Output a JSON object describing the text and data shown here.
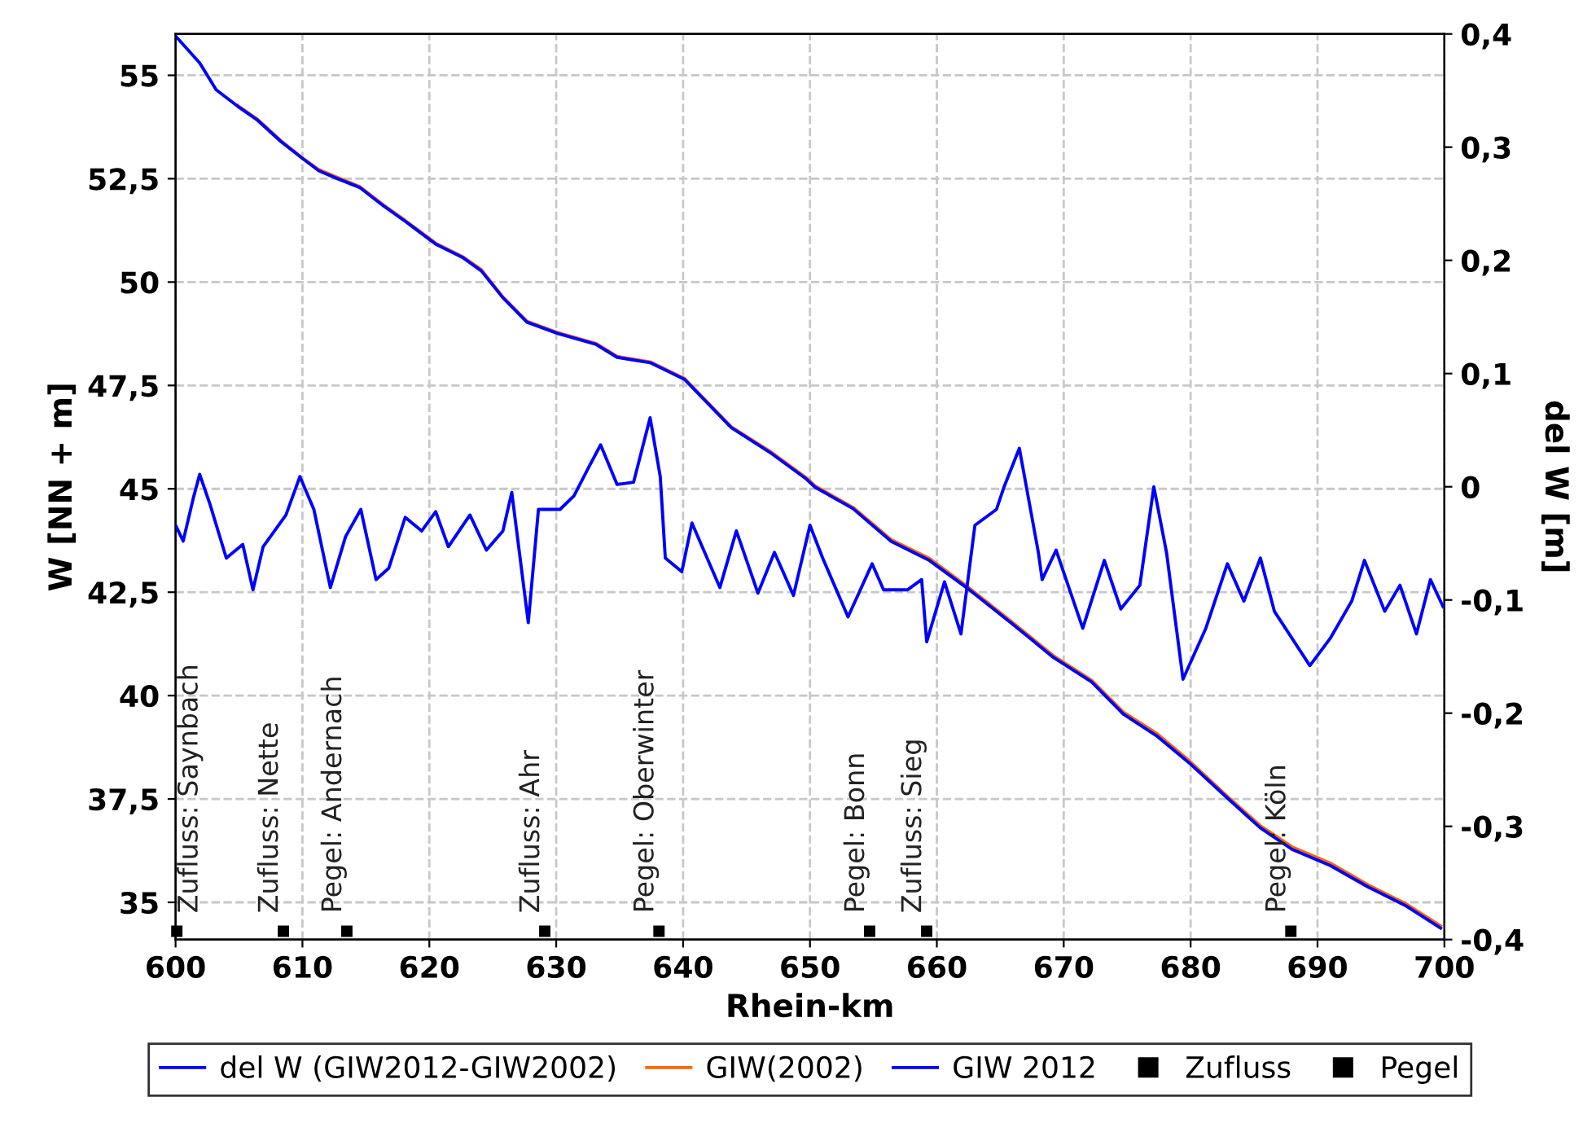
{
  "chart_data": {
    "type": "line",
    "xlabel": "Rhein-km",
    "ylabel": "W [NN + m]",
    "y2label": "del W [m]",
    "xlim": [
      600,
      700
    ],
    "xticks": [
      600,
      610,
      620,
      630,
      640,
      650,
      660,
      670,
      680,
      690,
      700
    ],
    "ylim": [
      34.1,
      56
    ],
    "yticks": [
      35,
      {
        "value": 37.5,
        "label": "37,5"
      },
      40,
      {
        "value": 42.5,
        "label": "42,5"
      },
      45,
      {
        "value": 47.5,
        "label": "47,5"
      },
      50,
      {
        "value": 52.5,
        "label": "52,5"
      },
      55
    ],
    "y2lim": [
      -0.4,
      0.4
    ],
    "y2ticks": [
      {
        "value": -0.4,
        "label": "-0,4"
      },
      {
        "value": -0.3,
        "label": "-0,3"
      },
      {
        "value": -0.2,
        "label": "-0,2"
      },
      {
        "value": -0.1,
        "label": "-0,1"
      },
      0,
      {
        "value": 0.1,
        "label": "0,1"
      },
      {
        "value": 0.2,
        "label": "0,2"
      },
      {
        "value": 0.3,
        "label": "0,3"
      },
      {
        "value": 0.4,
        "label": "0,4"
      }
    ],
    "grid": true,
    "legend": "bottom",
    "line_style": "solid",
    "series": [
      {
        "name": "del W (GIW2012-GIW2002)",
        "axis": "y2",
        "color": "#0000ff",
        "x": [
          600,
          600.6,
          601.4,
          601.9,
          602.7,
          604.0,
          605.3,
          606.1,
          606.9,
          608.7,
          609.8,
          610.9,
          612.2,
          613.4,
          614.6,
          615.8,
          616.8,
          618.1,
          619.4,
          620.5,
          621.5,
          623.2,
          624.5,
          625.8,
          626.5,
          627.8,
          628.6,
          630.3,
          631.4,
          632.6,
          633.5,
          634.8,
          636.1,
          637.4,
          638.2,
          638.6,
          639.9,
          640.7,
          642.9,
          644.2,
          645.9,
          647.2,
          648.7,
          650.0,
          651.0,
          653.0,
          654.9,
          655.8,
          657.7,
          658.8,
          659.2,
          660.6,
          661.9,
          663.0,
          664.7,
          665.3,
          666.5,
          668.0,
          668.3,
          669.4,
          671.5,
          673.2,
          674.5,
          676.0,
          677.1,
          678.1,
          679.4,
          681.2,
          682.9,
          684.2,
          685.5,
          686.6,
          689.4,
          691.0,
          692.7,
          693.7,
          695.3,
          696.5,
          697.8,
          698.9,
          699.9
        ],
        "values": [
          -0.034,
          -0.048,
          -0.01,
          0.011,
          -0.015,
          -0.063,
          -0.051,
          -0.091,
          -0.053,
          -0.025,
          0.009,
          -0.02,
          -0.089,
          -0.044,
          -0.02,
          -0.082,
          -0.072,
          -0.027,
          -0.039,
          -0.022,
          -0.053,
          -0.025,
          -0.056,
          -0.039,
          -0.005,
          -0.12,
          -0.02,
          -0.02,
          -0.008,
          0.018,
          0.037,
          0.002,
          0.004,
          0.061,
          0.009,
          -0.063,
          -0.075,
          -0.032,
          -0.089,
          -0.039,
          -0.094,
          -0.058,
          -0.096,
          -0.034,
          -0.063,
          -0.115,
          -0.068,
          -0.091,
          -0.091,
          -0.082,
          -0.137,
          -0.084,
          -0.13,
          -0.034,
          -0.02,
          0.0,
          0.034,
          -0.058,
          -0.082,
          -0.056,
          -0.125,
          -0.065,
          -0.108,
          -0.087,
          0.0,
          -0.058,
          -0.17,
          -0.125,
          -0.068,
          -0.101,
          -0.063,
          -0.11,
          -0.158,
          -0.134,
          -0.101,
          -0.065,
          -0.11,
          -0.087,
          -0.13,
          -0.082,
          -0.106
        ]
      },
      {
        "name": "GIW(2002)",
        "color": "#ff6600",
        "x": [
          604.9,
          606.4,
          608.3,
          610,
          611.3,
          612.6,
          614.5,
          616.4,
          618.1,
          620.5,
          622.6,
          624.1,
          625.8,
          627.7,
          630.1,
          633.1,
          634.8,
          637.4,
          640.1,
          643.8,
          646.8,
          649.7,
          650.4,
          653.4,
          656.4,
          659.4,
          662.3,
          665.8,
          669.2,
          672.2,
          674.7,
          677.3,
          679.9,
          682.9,
          685.5,
          688.0,
          691.0,
          694.0,
          697.0,
          699.7
        ],
        "values": [
          54.27,
          53.95,
          53.42,
          53.0,
          52.72,
          52.55,
          52.31,
          51.86,
          51.49,
          50.94,
          50.62,
          50.3,
          49.64,
          49.05,
          48.78,
          48.52,
          48.2,
          48.07,
          47.67,
          46.5,
          45.92,
          45.27,
          45.07,
          44.55,
          43.77,
          43.32,
          42.66,
          41.81,
          40.96,
          40.37,
          39.6,
          39.09,
          38.42,
          37.56,
          36.85,
          36.34,
          35.95,
          35.42,
          34.96,
          34.43
        ]
      },
      {
        "name": "GIW 2012",
        "color": "#0000ff",
        "x": [
          600,
          601.9,
          603.2,
          604.9,
          606.4,
          608.3,
          610,
          611.3,
          612.6,
          614.5,
          616.4,
          618.1,
          620.5,
          622.6,
          624.1,
          625.8,
          627.7,
          630.1,
          633.1,
          634.8,
          637.4,
          640.1,
          643.8,
          646.8,
          649.7,
          650.4,
          653.4,
          656.4,
          659.4,
          662.3,
          665.8,
          669.2,
          672.2,
          674.7,
          677.3,
          679.9,
          682.9,
          685.5,
          688.0,
          691.0,
          694.0,
          697.0,
          699.7
        ],
        "values": [
          55.95,
          55.3,
          54.65,
          54.25,
          53.93,
          53.4,
          52.99,
          52.69,
          52.52,
          52.29,
          51.84,
          51.47,
          50.92,
          50.6,
          50.27,
          49.62,
          49.03,
          48.76,
          48.5,
          48.18,
          48.05,
          47.65,
          46.48,
          45.89,
          45.24,
          45.04,
          44.52,
          43.73,
          43.27,
          42.62,
          41.77,
          40.92,
          40.33,
          39.55,
          39.03,
          38.37,
          37.52,
          36.8,
          36.28,
          35.89,
          35.37,
          34.91,
          34.38
        ]
      },
      {
        "name": "Zufluss",
        "type": "scatter",
        "marker": "square",
        "color": "#000000",
        "x": [
          600.1,
          608.5,
          629.1,
          659.2
        ],
        "values": [
          34.3,
          34.3,
          34.3,
          34.3
        ]
      },
      {
        "name": "Pegel",
        "type": "scatter",
        "marker": "square",
        "color": "#000000",
        "x": [
          613.5,
          638.1,
          654.7,
          687.9
        ],
        "values": [
          34.3,
          34.3,
          34.3,
          34.3
        ]
      }
    ],
    "annotations": [
      {
        "text": "Zufluss: Saynbach",
        "x": 600.1,
        "y": 34.3
      },
      {
        "text": "Zufluss: Nette",
        "x": 608.5,
        "y": 34.3
      },
      {
        "text": "Pegel: Andernach",
        "x": 613.5,
        "y": 34.3
      },
      {
        "text": "Zufluss: Ahr",
        "x": 629.1,
        "y": 34.3
      },
      {
        "text": "Pegel: Oberwinter",
        "x": 638.1,
        "y": 34.3
      },
      {
        "text": "Pegel: Bonn",
        "x": 654.7,
        "y": 34.3
      },
      {
        "text": "Zufluss: Sieg",
        "x": 659.2,
        "y": 34.3
      },
      {
        "text": "Pegel: Köln",
        "x": 687.9,
        "y": 34.3
      }
    ]
  }
}
